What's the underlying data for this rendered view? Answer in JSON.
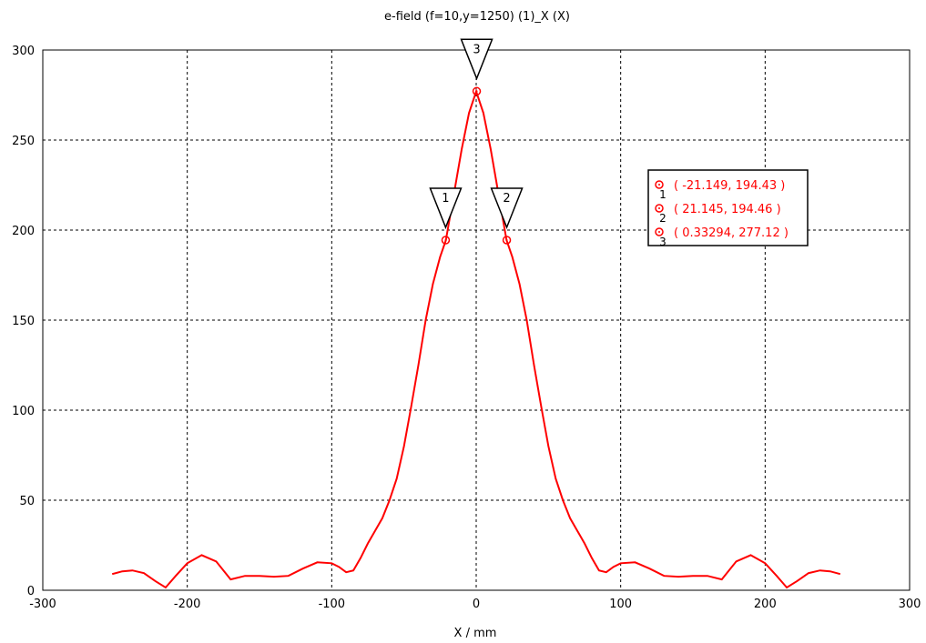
{
  "chart_data": {
    "type": "line",
    "title": "e-field (f=10,y=1250) (1)_X (X)",
    "xlabel": "X / mm",
    "ylabel": "",
    "xlim": [
      -300,
      300
    ],
    "ylim": [
      0,
      300
    ],
    "x_ticks": [
      -300,
      -200,
      -100,
      0,
      100,
      200,
      300
    ],
    "y_ticks": [
      0,
      50,
      100,
      150,
      200,
      250,
      300
    ],
    "grid": true,
    "series": [
      {
        "color": "#ff0000",
        "x": [
          -252,
          -245,
          -238,
          -230,
          -222,
          -215,
          -208,
          -200,
          -190,
          -180,
          -170,
          -160,
          -150,
          -140,
          -130,
          -120,
          -110,
          -100,
          -95,
          -90,
          -85,
          -80,
          -75,
          -70,
          -65,
          -60,
          -55,
          -50,
          -45,
          -40,
          -35,
          -30,
          -25,
          -21,
          -15,
          -10,
          -5,
          0,
          5,
          10,
          15,
          21,
          25,
          30,
          35,
          40,
          45,
          50,
          55,
          60,
          65,
          70,
          75,
          80,
          85,
          90,
          95,
          100,
          110,
          120,
          130,
          140,
          150,
          160,
          170,
          180,
          190,
          200,
          208,
          215,
          222,
          230,
          238,
          245,
          252
        ],
        "y": [
          9,
          10.5,
          11,
          9.5,
          5,
          1.5,
          8,
          15,
          19.5,
          16,
          6,
          8,
          8,
          7.5,
          8,
          12,
          15.5,
          15,
          13,
          10,
          11,
          18,
          26,
          33,
          40,
          50,
          62,
          80,
          102,
          125,
          150,
          170,
          185,
          194.4,
          222,
          245,
          265,
          277,
          265,
          245,
          222,
          194.5,
          185,
          170,
          150,
          125,
          102,
          80,
          62,
          50,
          40,
          33,
          26,
          18,
          11,
          10,
          13,
          15,
          15.5,
          12,
          8,
          7.5,
          8,
          8,
          6,
          16,
          19.5,
          15,
          8,
          1.5,
          5,
          9.5,
          11,
          10.5,
          9
        ]
      }
    ],
    "markers": [
      {
        "id": "1",
        "x": -21.149,
        "y": 194.43
      },
      {
        "id": "2",
        "x": 21.145,
        "y": 194.46
      },
      {
        "id": "3",
        "x": 0.33294,
        "y": 277.12
      }
    ],
    "legend": {
      "placement": "right",
      "entries": [
        {
          "index": "1",
          "text": "( -21.149, 194.43 )"
        },
        {
          "index": "2",
          "text": "( 21.145, 194.46 )"
        },
        {
          "index": "3",
          "text": "( 0.33294, 277.12 )"
        }
      ]
    }
  }
}
